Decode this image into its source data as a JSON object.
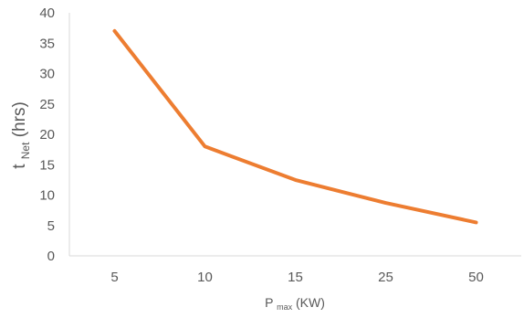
{
  "chart_data": {
    "type": "line",
    "categories": [
      "5",
      "10",
      "15",
      "25",
      "50"
    ],
    "series": [
      {
        "values": [
          37,
          18,
          12.5,
          8.7,
          5.5
        ],
        "color": "#ED7D31"
      }
    ],
    "ylabel": {
      "main": "t",
      "sub": "Net",
      "unit": " (hrs)"
    },
    "xlabel": {
      "main": "P",
      "sub": "max",
      "unit": "(KW)"
    },
    "ylim": [
      0,
      40
    ],
    "yticks": [
      0,
      5,
      10,
      15,
      20,
      25,
      30,
      35,
      40
    ],
    "grid": false,
    "axis_color": "#D9D9D9",
    "tick_label_color": "#595959"
  }
}
